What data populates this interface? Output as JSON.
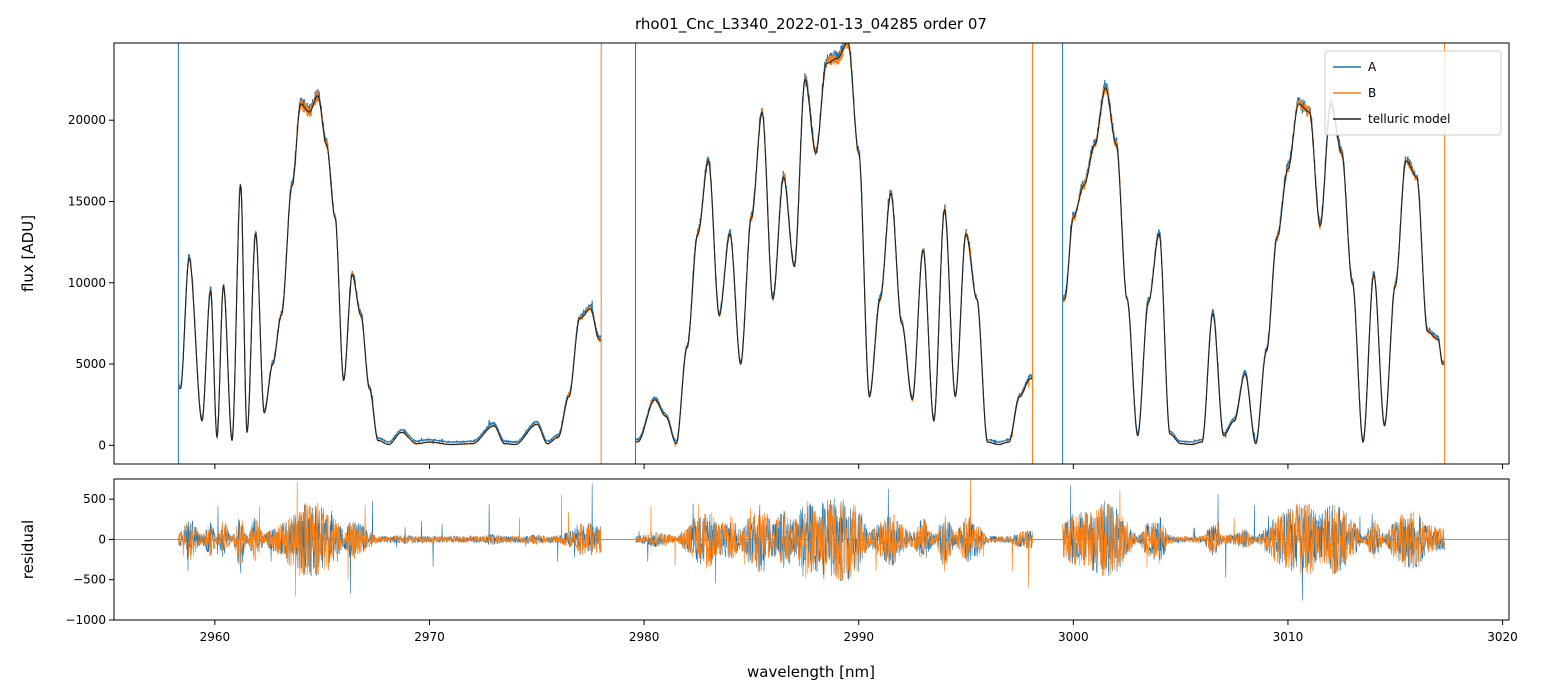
{
  "chart_data": [
    {
      "type": "line",
      "title": "rho01_Cnc_L3340_2022-01-13_04285  order 07",
      "xlabel": "",
      "ylabel": "flux [ADU]",
      "xlim": [
        2955.3,
        3020.3
      ],
      "ylim": [
        -1150,
        24750
      ],
      "yticks": [
        0,
        5000,
        10000,
        15000,
        20000
      ],
      "ytick_labels": [
        "0",
        "5000",
        "10000",
        "15000",
        "20000"
      ],
      "xticks": [
        2960,
        2970,
        2980,
        2990,
        3000,
        3010,
        3020
      ],
      "grid": false,
      "legend": "top-right",
      "segments": [
        [
          2958.3,
          2978.0
        ],
        [
          2979.6,
          2998.1
        ],
        [
          2999.5,
          3017.3
        ]
      ],
      "series": [
        {
          "name": "A",
          "color": "#1f77b4"
        },
        {
          "name": "B",
          "color": "#ff7f0e"
        },
        {
          "name": "telluric model",
          "color": "#222222"
        }
      ],
      "x": [
        2958.4,
        2958.8,
        2959.4,
        2959.8,
        2960.1,
        2960.4,
        2960.8,
        2961.2,
        2961.5,
        2961.9,
        2962.3,
        2962.7,
        2963.1,
        2963.6,
        2964.0,
        2964.4,
        2964.8,
        2965.2,
        2965.6,
        2966.0,
        2966.4,
        2966.8,
        2967.2,
        2967.6,
        2968.1,
        2968.7,
        2969.4,
        2970.0,
        2971.0,
        2972.0,
        2973.0,
        2973.5,
        2974.0,
        2975.0,
        2975.5,
        2976.0,
        2976.5,
        2977.0,
        2977.5,
        2977.9,
        2979.7,
        2980.5,
        2981.0,
        2981.5,
        2982.0,
        2982.5,
        2983.0,
        2983.5,
        2984.0,
        2984.5,
        2985.0,
        2985.5,
        2986.0,
        2986.5,
        2987.0,
        2987.5,
        2988.0,
        2988.5,
        2989.0,
        2989.5,
        2990.0,
        2990.5,
        2991.0,
        2991.5,
        2992.0,
        2992.5,
        2993.0,
        2993.5,
        2994.0,
        2994.5,
        2995.0,
        2995.5,
        2996.0,
        2996.5,
        2997.0,
        2997.5,
        2998.0,
        2999.6,
        3000.0,
        3000.5,
        3001.0,
        3001.5,
        3002.0,
        3002.5,
        3003.0,
        3003.5,
        3004.0,
        3004.5,
        3005.0,
        3005.5,
        3006.0,
        3006.5,
        3007.0,
        3007.5,
        3008.0,
        3008.5,
        3009.0,
        3009.5,
        3010.0,
        3010.5,
        3011.0,
        3011.5,
        3012.0,
        3012.5,
        3013.0,
        3013.5,
        3014.0,
        3014.5,
        3015.0,
        3015.5,
        3016.0,
        3016.5,
        3017.0,
        3017.2
      ],
      "values": [
        3500,
        11500,
        1500,
        9500,
        500,
        9800,
        300,
        16000,
        800,
        13000,
        2000,
        5000,
        8000,
        16000,
        21000,
        20500,
        21500,
        18500,
        14000,
        4000,
        10500,
        8000,
        3500,
        300,
        50,
        800,
        100,
        200,
        50,
        100,
        1200,
        100,
        50,
        1300,
        100,
        500,
        3000,
        7800,
        8400,
        6500,
        200,
        2800,
        1800,
        100,
        6000,
        13000,
        17500,
        8000,
        13000,
        5000,
        14000,
        20500,
        9000,
        16500,
        11000,
        22500,
        18000,
        23500,
        23800,
        24800,
        18000,
        3000,
        9000,
        15500,
        7500,
        2800,
        12000,
        1500,
        14500,
        3000,
        13000,
        9000,
        200,
        50,
        200,
        3000,
        4100,
        9000,
        14000,
        16000,
        18500,
        22000,
        18500,
        9000,
        600,
        8800,
        13000,
        700,
        100,
        50,
        200,
        8100,
        600,
        1500,
        4400,
        100,
        5800,
        12800,
        17000,
        21000,
        20500,
        13500,
        21000,
        18000,
        10000,
        200,
        10500,
        1200,
        9800,
        17500,
        16500,
        7000,
        6500,
        5000
      ]
    },
    {
      "type": "line",
      "title": "",
      "xlabel": "wavelength [nm]",
      "ylabel": "residual",
      "xlim": [
        2955.3,
        3020.3
      ],
      "ylim": [
        -1000,
        750
      ],
      "yticks": [
        -1000,
        -500,
        0,
        500
      ],
      "ytick_labels": [
        "−1000",
        "−500",
        "0",
        "500"
      ],
      "xticks": [
        2960,
        2970,
        2980,
        2990,
        3000,
        3010,
        3020
      ],
      "xtick_labels": [
        "2960",
        "2970",
        "2980",
        "2990",
        "3000",
        "3010",
        "3020"
      ],
      "grid": false,
      "zero_line": true,
      "series": [
        {
          "name": "A",
          "color": "#1f77b4"
        },
        {
          "name": "B",
          "color": "#ff7f0e"
        }
      ]
    }
  ]
}
